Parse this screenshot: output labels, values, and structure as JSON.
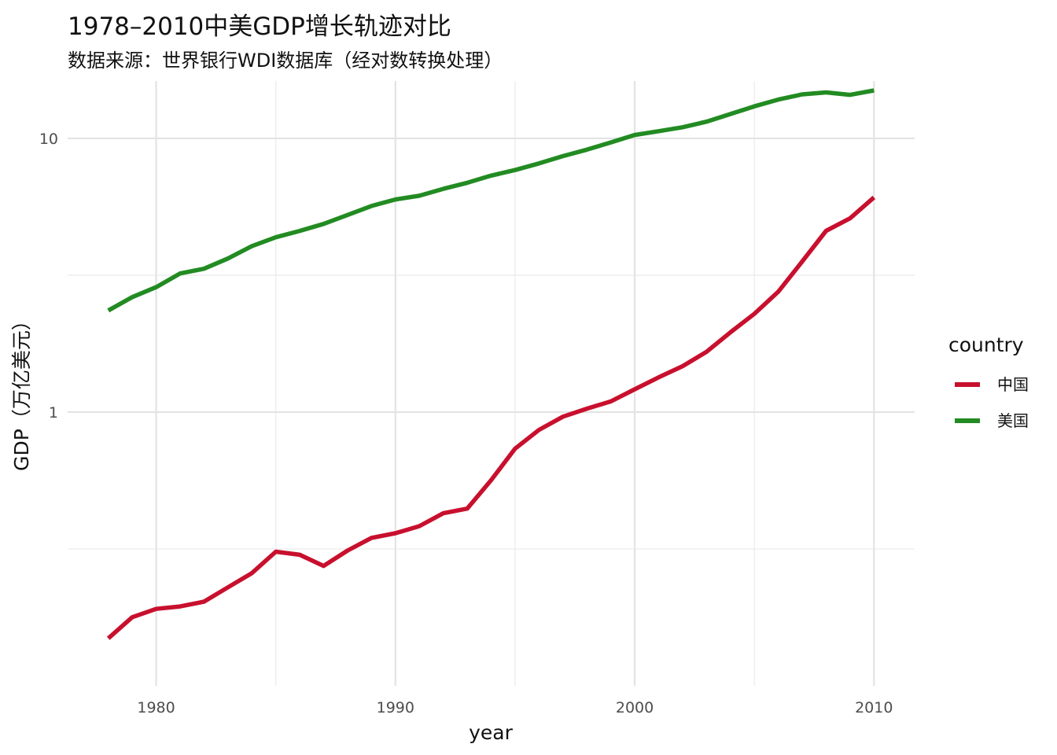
{
  "chart_data": {
    "type": "line",
    "title": "1978–2010中美GDP增长轨迹对比",
    "subtitle": "数据来源：世界银行WDI数据库（经对数转换处理）",
    "xlabel": "year",
    "ylabel": "GDP（万亿美元）",
    "y_scale": "log10",
    "xlim": [
      1976.3,
      2011.7
    ],
    "ylim": [
      0.1,
      16.2
    ],
    "x_ticks": [
      1980,
      1990,
      2000,
      2010
    ],
    "x_tick_labels": [
      "1980",
      "1990",
      "2000",
      "2010"
    ],
    "y_ticks": [
      1,
      10
    ],
    "y_tick_labels": [
      "1",
      "10"
    ],
    "grid": true,
    "legend": {
      "title": "country",
      "position": "right"
    },
    "x": [
      1978,
      1979,
      1980,
      1981,
      1982,
      1983,
      1984,
      1985,
      1986,
      1987,
      1988,
      1989,
      1990,
      1991,
      1992,
      1993,
      1994,
      1995,
      1996,
      1997,
      1998,
      1999,
      2000,
      2001,
      2002,
      2003,
      2004,
      2005,
      2006,
      2007,
      2008,
      2009,
      2010
    ],
    "series": [
      {
        "name": "中国",
        "color": "#c8102e",
        "values": [
          0.149,
          0.178,
          0.191,
          0.195,
          0.203,
          0.229,
          0.258,
          0.309,
          0.301,
          0.274,
          0.312,
          0.347,
          0.361,
          0.383,
          0.427,
          0.444,
          0.564,
          0.735,
          0.861,
          0.962,
          1.029,
          1.094,
          1.211,
          1.339,
          1.471,
          1.66,
          1.955,
          2.286,
          2.752,
          3.55,
          4.594,
          5.102,
          6.087
        ]
      },
      {
        "name": "美国",
        "color": "#228b22",
        "values": [
          2.35,
          2.63,
          2.86,
          3.21,
          3.34,
          3.64,
          4.04,
          4.35,
          4.59,
          4.87,
          5.25,
          5.66,
          5.98,
          6.17,
          6.54,
          6.88,
          7.31,
          7.66,
          8.1,
          8.61,
          9.09,
          9.66,
          10.29,
          10.62,
          10.98,
          11.51,
          12.27,
          13.09,
          13.86,
          14.48,
          14.72,
          14.42,
          14.96
        ]
      }
    ]
  }
}
